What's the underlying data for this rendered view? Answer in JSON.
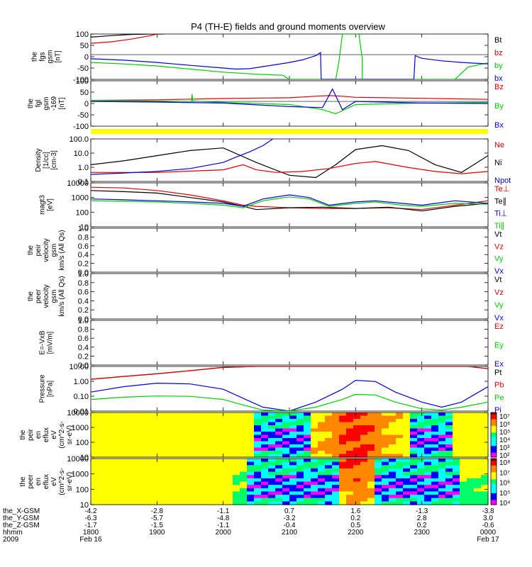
{
  "title": "P4 (TH-E) fields and ground moments overview",
  "colors": {
    "black": "#000000",
    "red": "#dd0000",
    "green": "#00cc00",
    "blue": "#0000dd",
    "yellow": "#ffff00"
  },
  "chart_data": {
    "type": "line",
    "x_hours": [
      18,
      19,
      20,
      21,
      22,
      23,
      24
    ],
    "panels": [
      {
        "id": "fgs",
        "ylabel": [
          "the",
          "fgs",
          "gsm",
          "[nT]"
        ],
        "yticks": [
          "100",
          "50",
          "0",
          "-50",
          "-100"
        ],
        "ylim": [
          -120,
          100
        ],
        "scale": "linear",
        "legend": [
          {
            "label": "Bt",
            "color": "black"
          },
          {
            "label": "bz",
            "color": "red"
          },
          {
            "label": "by",
            "color": "green"
          },
          {
            "label": "bx",
            "color": "blue"
          }
        ],
        "series": [
          {
            "color": "black",
            "x": [
              18.0,
              18.3,
              18.6,
              18.9,
              19.1
            ],
            "y": [
              85,
              92,
              98,
              100,
              100
            ]
          },
          {
            "color": "red",
            "x": [
              18.0,
              18.3,
              18.6,
              18.9,
              19.0
            ],
            "y": [
              55,
              62,
              75,
              92,
              100
            ]
          },
          {
            "color": "green",
            "x": [
              18.0,
              18.5,
              19.0,
              19.5,
              20.0,
              20.5,
              20.9,
              21.0,
              21.7,
              21.75,
              21.8,
              22.05,
              22.1,
              22.1,
              22.2,
              23.5,
              23.7,
              24.0
            ],
            "y": [
              -38,
              -45,
              -55,
              -70,
              -85,
              -95,
              -100,
              -120,
              -120,
              -30,
              100,
              100,
              -20,
              -120,
              -120,
              -120,
              -60,
              -40
            ]
          },
          {
            "color": "blue",
            "x": [
              18.0,
              18.5,
              19.0,
              19.5,
              20.0,
              20.2,
              20.4,
              20.6,
              20.8,
              21.0,
              21.2,
              21.4,
              21.47,
              21.48,
              22.88,
              22.9,
              23.0,
              23.3,
              23.6,
              23.9,
              24.0
            ],
            "y": [
              -20,
              -27,
              -38,
              -52,
              -65,
              -70,
              -68,
              -58,
              -48,
              -38,
              -25,
              -5,
              10,
              -120,
              -120,
              -5,
              -18,
              -30,
              -38,
              -43,
              -45
            ]
          }
        ]
      },
      {
        "id": "fgl",
        "ylabel": [
          "the",
          "fgl",
          "gsm",
          "-169",
          "[nT]"
        ],
        "yticks": [
          "100",
          "50",
          "0",
          "-50",
          "-100"
        ],
        "ylim": [
          -120,
          100
        ],
        "scale": "linear",
        "legend": [
          {
            "label": "Bz",
            "color": "red"
          },
          {
            "label": "By",
            "color": "green"
          },
          {
            "label": "Bx",
            "color": "blue"
          }
        ],
        "series": [
          {
            "color": "red",
            "x": [
              18.0,
              19.0,
              20.0,
              21.0,
              21.4,
              21.6,
              21.8,
              22.0,
              23.0,
              24.0
            ],
            "y": [
              5,
              8,
              14,
              18,
              25,
              28,
              25,
              20,
              15,
              10
            ]
          },
          {
            "color": "green",
            "x": [
              18.0,
              19.0,
              19.52,
              19.53,
              19.54,
              20.0,
              21.0,
              21.5,
              21.7,
              22.0,
              23.0,
              24.0
            ],
            "y": [
              5,
              2,
              0,
              35,
              2,
              -5,
              -15,
              -40,
              -60,
              -15,
              -8,
              -5
            ]
          },
          {
            "color": "blue",
            "x": [
              18.0,
              19.0,
              20.0,
              21.0,
              21.5,
              21.65,
              21.8,
              22.0,
              23.0,
              24.0
            ],
            "y": [
              0,
              -3,
              -8,
              -25,
              -30,
              60,
              -40,
              0,
              -8,
              -10
            ]
          }
        ]
      },
      {
        "id": "density",
        "ylabel": [
          "Density",
          "[1/cc]",
          "[cm-3]"
        ],
        "yticks": [
          "100.0",
          "10.0",
          "1.0",
          "0.1"
        ],
        "ylim": [
          0.1,
          200
        ],
        "scale": "log",
        "legend": [
          {
            "label": "Ne",
            "color": "red"
          },
          {
            "label": "Ni",
            "color": "black"
          },
          {
            "label": "Npot",
            "color": "blue"
          }
        ],
        "series": [
          {
            "color": "black",
            "x": [
              18.0,
              18.5,
              19.0,
              19.5,
              20.0,
              20.5,
              21.0,
              21.4,
              21.7,
              22.0,
              22.4,
              22.8,
              23.2,
              23.6,
              24.0
            ],
            "y": [
              2,
              4,
              10,
              25,
              40,
              3,
              0.3,
              0.2,
              2,
              30,
              60,
              25,
              2,
              0.5,
              10
            ]
          },
          {
            "color": "red",
            "x": [
              18.0,
              19.0,
              20.0,
              20.3,
              20.5,
              20.8,
              21.2,
              21.6,
              22.0,
              22.3,
              22.8,
              23.2,
              23.6,
              24.0
            ],
            "y": [
              0.5,
              0.5,
              0.8,
              2,
              0.8,
              0.5,
              0.6,
              1.0,
              2.5,
              3.5,
              1.2,
              0.6,
              0.4,
              0.6
            ]
          },
          {
            "color": "blue",
            "x": [
              18.0,
              18.5,
              19.0,
              19.5,
              20.0,
              20.2,
              20.4,
              20.6,
              20.75
            ],
            "y": [
              0.35,
              0.45,
              0.6,
              1.0,
              3,
              8,
              20,
              60,
              200
            ]
          }
        ]
      },
      {
        "id": "moments",
        "ylabel": [
          "magt3",
          "[eV]"
        ],
        "yticks": [
          "10000",
          "1000",
          "100",
          "10"
        ],
        "ylim": [
          10,
          10000
        ],
        "scale": "log",
        "legend": [
          {
            "label": "Te⊥",
            "color": "red"
          },
          {
            "label": "Te∥",
            "color": "black"
          },
          {
            "label": "Ti⊥",
            "color": "blue"
          },
          {
            "label": "Ti∥",
            "color": "green"
          }
        ],
        "series": [
          {
            "color": "red",
            "x": [
              18.0,
              18.5,
              19.0,
              19.5,
              20.0,
              20.3,
              20.5,
              21.0,
              21.5,
              22.0,
              22.5,
              23.0,
              23.5,
              24.0
            ],
            "y": [
              5000,
              4500,
              3000,
              1500,
              600,
              300,
              250,
              200,
              180,
              180,
              200,
              150,
              300,
              600
            ]
          },
          {
            "color": "black",
            "x": [
              18.0,
              18.5,
              19.0,
              19.5,
              20.0,
              20.3,
              20.5,
              21.0,
              21.5,
              22.0,
              22.5,
              23.0,
              23.5,
              24.0
            ],
            "y": [
              3000,
              2500,
              2000,
              1000,
              500,
              250,
              150,
              200,
              220,
              180,
              220,
              120,
              250,
              400
            ]
          },
          {
            "color": "blue",
            "x": [
              18.0,
              18.5,
              19.0,
              19.5,
              20.0,
              20.3,
              20.6,
              21.0,
              21.3,
              21.6,
              22.0,
              22.3,
              22.7,
              23.0,
              23.5,
              24.0
            ],
            "y": [
              800,
              700,
              600,
              500,
              400,
              250,
              800,
              1500,
              1000,
              300,
              500,
              600,
              400,
              300,
              600,
              400
            ]
          },
          {
            "color": "green",
            "x": [
              18.0,
              18.5,
              19.0,
              19.5,
              20.0,
              20.3,
              20.6,
              21.0,
              21.3,
              21.6,
              22.0,
              22.3,
              22.7,
              23.0,
              23.5,
              24.0
            ],
            "y": [
              600,
              550,
              500,
              400,
              300,
              200,
              600,
              1100,
              800,
              250,
              400,
              500,
              300,
              250,
              400,
              350
            ]
          }
        ]
      },
      {
        "id": "peir",
        "ylabel": [
          "the",
          "peir",
          "velocity",
          "gsm",
          "km/s (All Qs)"
        ],
        "yticks": [
          "1.0",
          "0.8",
          "0.6",
          "0.4",
          "0.2",
          "0.0"
        ],
        "ylim": [
          0,
          1
        ],
        "scale": "linear",
        "legend": [
          {
            "label": "Vt",
            "color": "black"
          },
          {
            "label": "Vz",
            "color": "red"
          },
          {
            "label": "Vy",
            "color": "green"
          },
          {
            "label": "Vx",
            "color": "blue"
          }
        ],
        "series": []
      },
      {
        "id": "peer",
        "ylabel": [
          "the",
          "peer",
          "velocity",
          "gsm",
          "km/s (All Qs)"
        ],
        "yticks": [
          "1.0",
          "0.8",
          "0.6",
          "0.4",
          "0.2",
          "0.0"
        ],
        "ylim": [
          0,
          1
        ],
        "scale": "linear",
        "legend": [
          {
            "label": "Vt",
            "color": "black"
          },
          {
            "label": "Vz",
            "color": "red"
          },
          {
            "label": "Vy",
            "color": "green"
          },
          {
            "label": "Vx",
            "color": "blue"
          }
        ],
        "series": []
      },
      {
        "id": "efield",
        "ylabel": [
          "E=-VxB",
          "[mV/m]"
        ],
        "yticks": [
          "1.0",
          "0.8",
          "0.6",
          "0.4",
          "0.2",
          "0.0"
        ],
        "ylim": [
          0,
          1
        ],
        "scale": "linear",
        "legend": [
          {
            "label": "Ez",
            "color": "red"
          },
          {
            "label": "Ey",
            "color": "green"
          },
          {
            "label": "Ex",
            "color": "blue"
          }
        ],
        "series": []
      },
      {
        "id": "pressure",
        "ylabel": [
          "Pressure",
          "[nPa]"
        ],
        "yticks": [
          "10.00",
          "1.00",
          "0.10",
          "0.01"
        ],
        "ylim": [
          0.01,
          30
        ],
        "scale": "log",
        "legend": [
          {
            "label": "Pt",
            "color": "black"
          },
          {
            "label": "Pb",
            "color": "red"
          },
          {
            "label": "Pe",
            "color": "green"
          },
          {
            "label": "Pi",
            "color": "blue"
          }
        ],
        "series": [
          {
            "color": "black",
            "x": [
              18.0,
              18.5,
              19.0,
              19.5,
              20.0,
              20.5,
              23.7,
              24.0
            ],
            "y": [
              3,
              5,
              8,
              14,
              25,
              30,
              30,
              20
            ]
          },
          {
            "color": "red",
            "x": [
              18.0,
              18.5,
              19.0,
              19.5,
              20.0,
              20.5,
              23.7,
              24.0
            ],
            "y": [
              3,
              5,
              8,
              14,
              25,
              30,
              30,
              20
            ]
          },
          {
            "color": "blue",
            "x": [
              18.0,
              18.5,
              19.0,
              19.5,
              20.0,
              20.3,
              20.6,
              21.0,
              21.4,
              21.8,
              22.0,
              22.3,
              22.6,
              23.0,
              23.3,
              23.6,
              24.0
            ],
            "y": [
              0.3,
              0.8,
              1.5,
              1.3,
              0.5,
              0.1,
              0.02,
              0.01,
              0.05,
              0.5,
              2.5,
              2,
              0.3,
              0.05,
              0.02,
              0.05,
              0.8
            ]
          },
          {
            "color": "green",
            "x": [
              18.0,
              18.5,
              19.0,
              19.5,
              20.0,
              20.3,
              20.6,
              21.0,
              21.4,
              21.8,
              22.0,
              22.3,
              22.6,
              23.0,
              23.3,
              23.6,
              24.0
            ],
            "y": [
              0.08,
              0.12,
              0.15,
              0.14,
              0.08,
              0.03,
              0.012,
              0.01,
              0.02,
              0.08,
              0.2,
              0.18,
              0.05,
              0.015,
              0.012,
              0.02,
              0.05
            ]
          }
        ]
      },
      {
        "id": "peir_eflux",
        "ylabel": [
          "the",
          "peir",
          "en",
          "eflux",
          "eV",
          "(cm^2-s-",
          "sr-eV)"
        ],
        "yticks": [
          "10000",
          "1000",
          "100",
          "10"
        ],
        "scale": "spectrogram",
        "colorbar": [
          "10⁷",
          "10⁶",
          "10⁵",
          "10⁴",
          "10³",
          "10²"
        ],
        "quiet_hours": [
          [
            20.5,
            21.3
          ],
          [
            22.8,
            23.5
          ]
        ],
        "peak_hour": 22.0
      },
      {
        "id": "peer_eflux",
        "ylabel": [
          "the",
          "peer",
          "en",
          "eflux",
          "eV",
          "(cm^2-s-",
          "sr-eV)"
        ],
        "yticks": [
          "10000",
          "1000",
          "100",
          "10"
        ],
        "scale": "spectrogram",
        "colorbar": [
          "10⁸",
          "10⁷",
          "10⁶",
          "10⁵",
          "10⁴"
        ],
        "quiet_hours": [
          [
            20.4,
            21.8
          ],
          [
            22.3,
            23.6
          ]
        ],
        "peak_hour": 22.0
      }
    ],
    "x_axis": {
      "rows": [
        {
          "label": "the_X-GSM",
          "values": [
            "-4.2",
            "-2.8",
            "-1.1",
            "0.7",
            "1.6",
            "-1.3",
            "-3.8"
          ]
        },
        {
          "label": "the_Y-GSM",
          "values": [
            "-6.3",
            "-5.7",
            "-4.8",
            "-3.2",
            "0.2",
            "2.8",
            "3.0"
          ]
        },
        {
          "label": "the_Z-GSM",
          "values": [
            "-1.7",
            "-1.5",
            "-1.1",
            "-0.4",
            "0.5",
            "0.2",
            "-0.6"
          ]
        },
        {
          "label": "hhmm",
          "values": [
            "1800",
            "1900",
            "2000",
            "2100",
            "2200",
            "2300",
            "0000"
          ]
        },
        {
          "label": "2009",
          "values": [
            "Feb 16",
            "",
            "",
            "",
            "",
            "",
            "Feb 17"
          ]
        }
      ]
    }
  }
}
